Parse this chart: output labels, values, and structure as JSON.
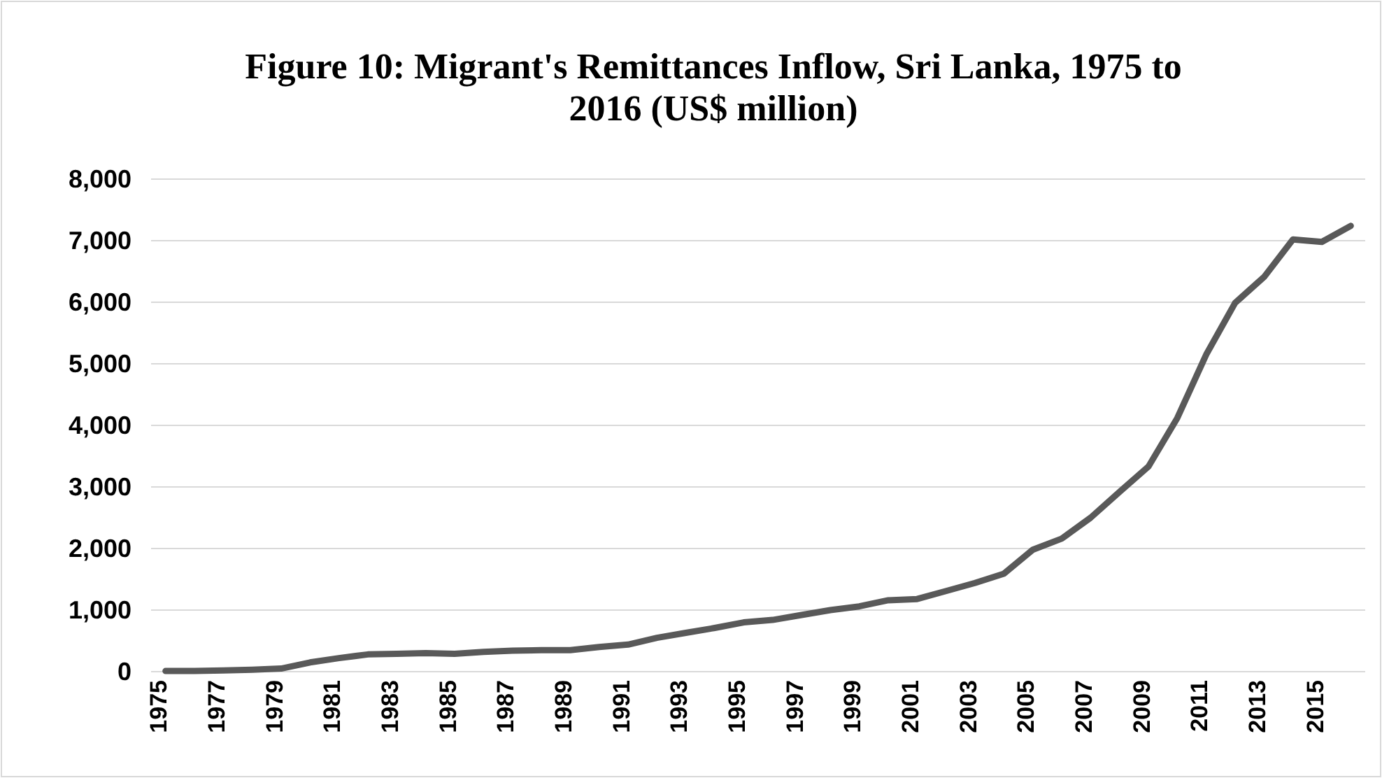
{
  "chart_data": {
    "type": "line",
    "title": "Figure 10: Migrant's Remittances Inflow, Sri Lanka, 1975 to 2016 (US$ million)",
    "categories": [
      "1975",
      null,
      "1977",
      null,
      "1979",
      null,
      "1981",
      null,
      "1983",
      null,
      "1985",
      null,
      "1987",
      null,
      "1989",
      null,
      "1991",
      null,
      "1993",
      null,
      "1995",
      null,
      "1997",
      null,
      "1999",
      null,
      "2001",
      null,
      "2003",
      null,
      "2005",
      null,
      "2007",
      null,
      "2009",
      null,
      "2011",
      null,
      "2013",
      null,
      "2015",
      null
    ],
    "series": [
      {
        "color": "#595959",
        "values": [
          10,
          10,
          20,
          30,
          50,
          150,
          220,
          280,
          290,
          300,
          290,
          320,
          340,
          350,
          350,
          400,
          440,
          550,
          630,
          710,
          800,
          840,
          920,
          1000,
          1060,
          1160,
          1180,
          1310,
          1440,
          1590,
          1980,
          2160,
          2500,
          2920,
          3330,
          4120,
          5150,
          5990,
          6410,
          7020,
          6980,
          7240
        ]
      }
    ],
    "ylim": [
      0,
      8000
    ],
    "yticks": [
      {
        "value": 0,
        "label": "0"
      },
      {
        "value": 1000,
        "label": "1,000"
      },
      {
        "value": 2000,
        "label": "2,000"
      },
      {
        "value": 3000,
        "label": "3,000"
      },
      {
        "value": 4000,
        "label": "4,000"
      },
      {
        "value": 5000,
        "label": "5,000"
      },
      {
        "value": 6000,
        "label": "6,000"
      },
      {
        "value": 7000,
        "label": "7,000"
      },
      {
        "value": 8000,
        "label": "8,000"
      }
    ],
    "grid": "y",
    "marker": "none",
    "line_style": "solid"
  }
}
